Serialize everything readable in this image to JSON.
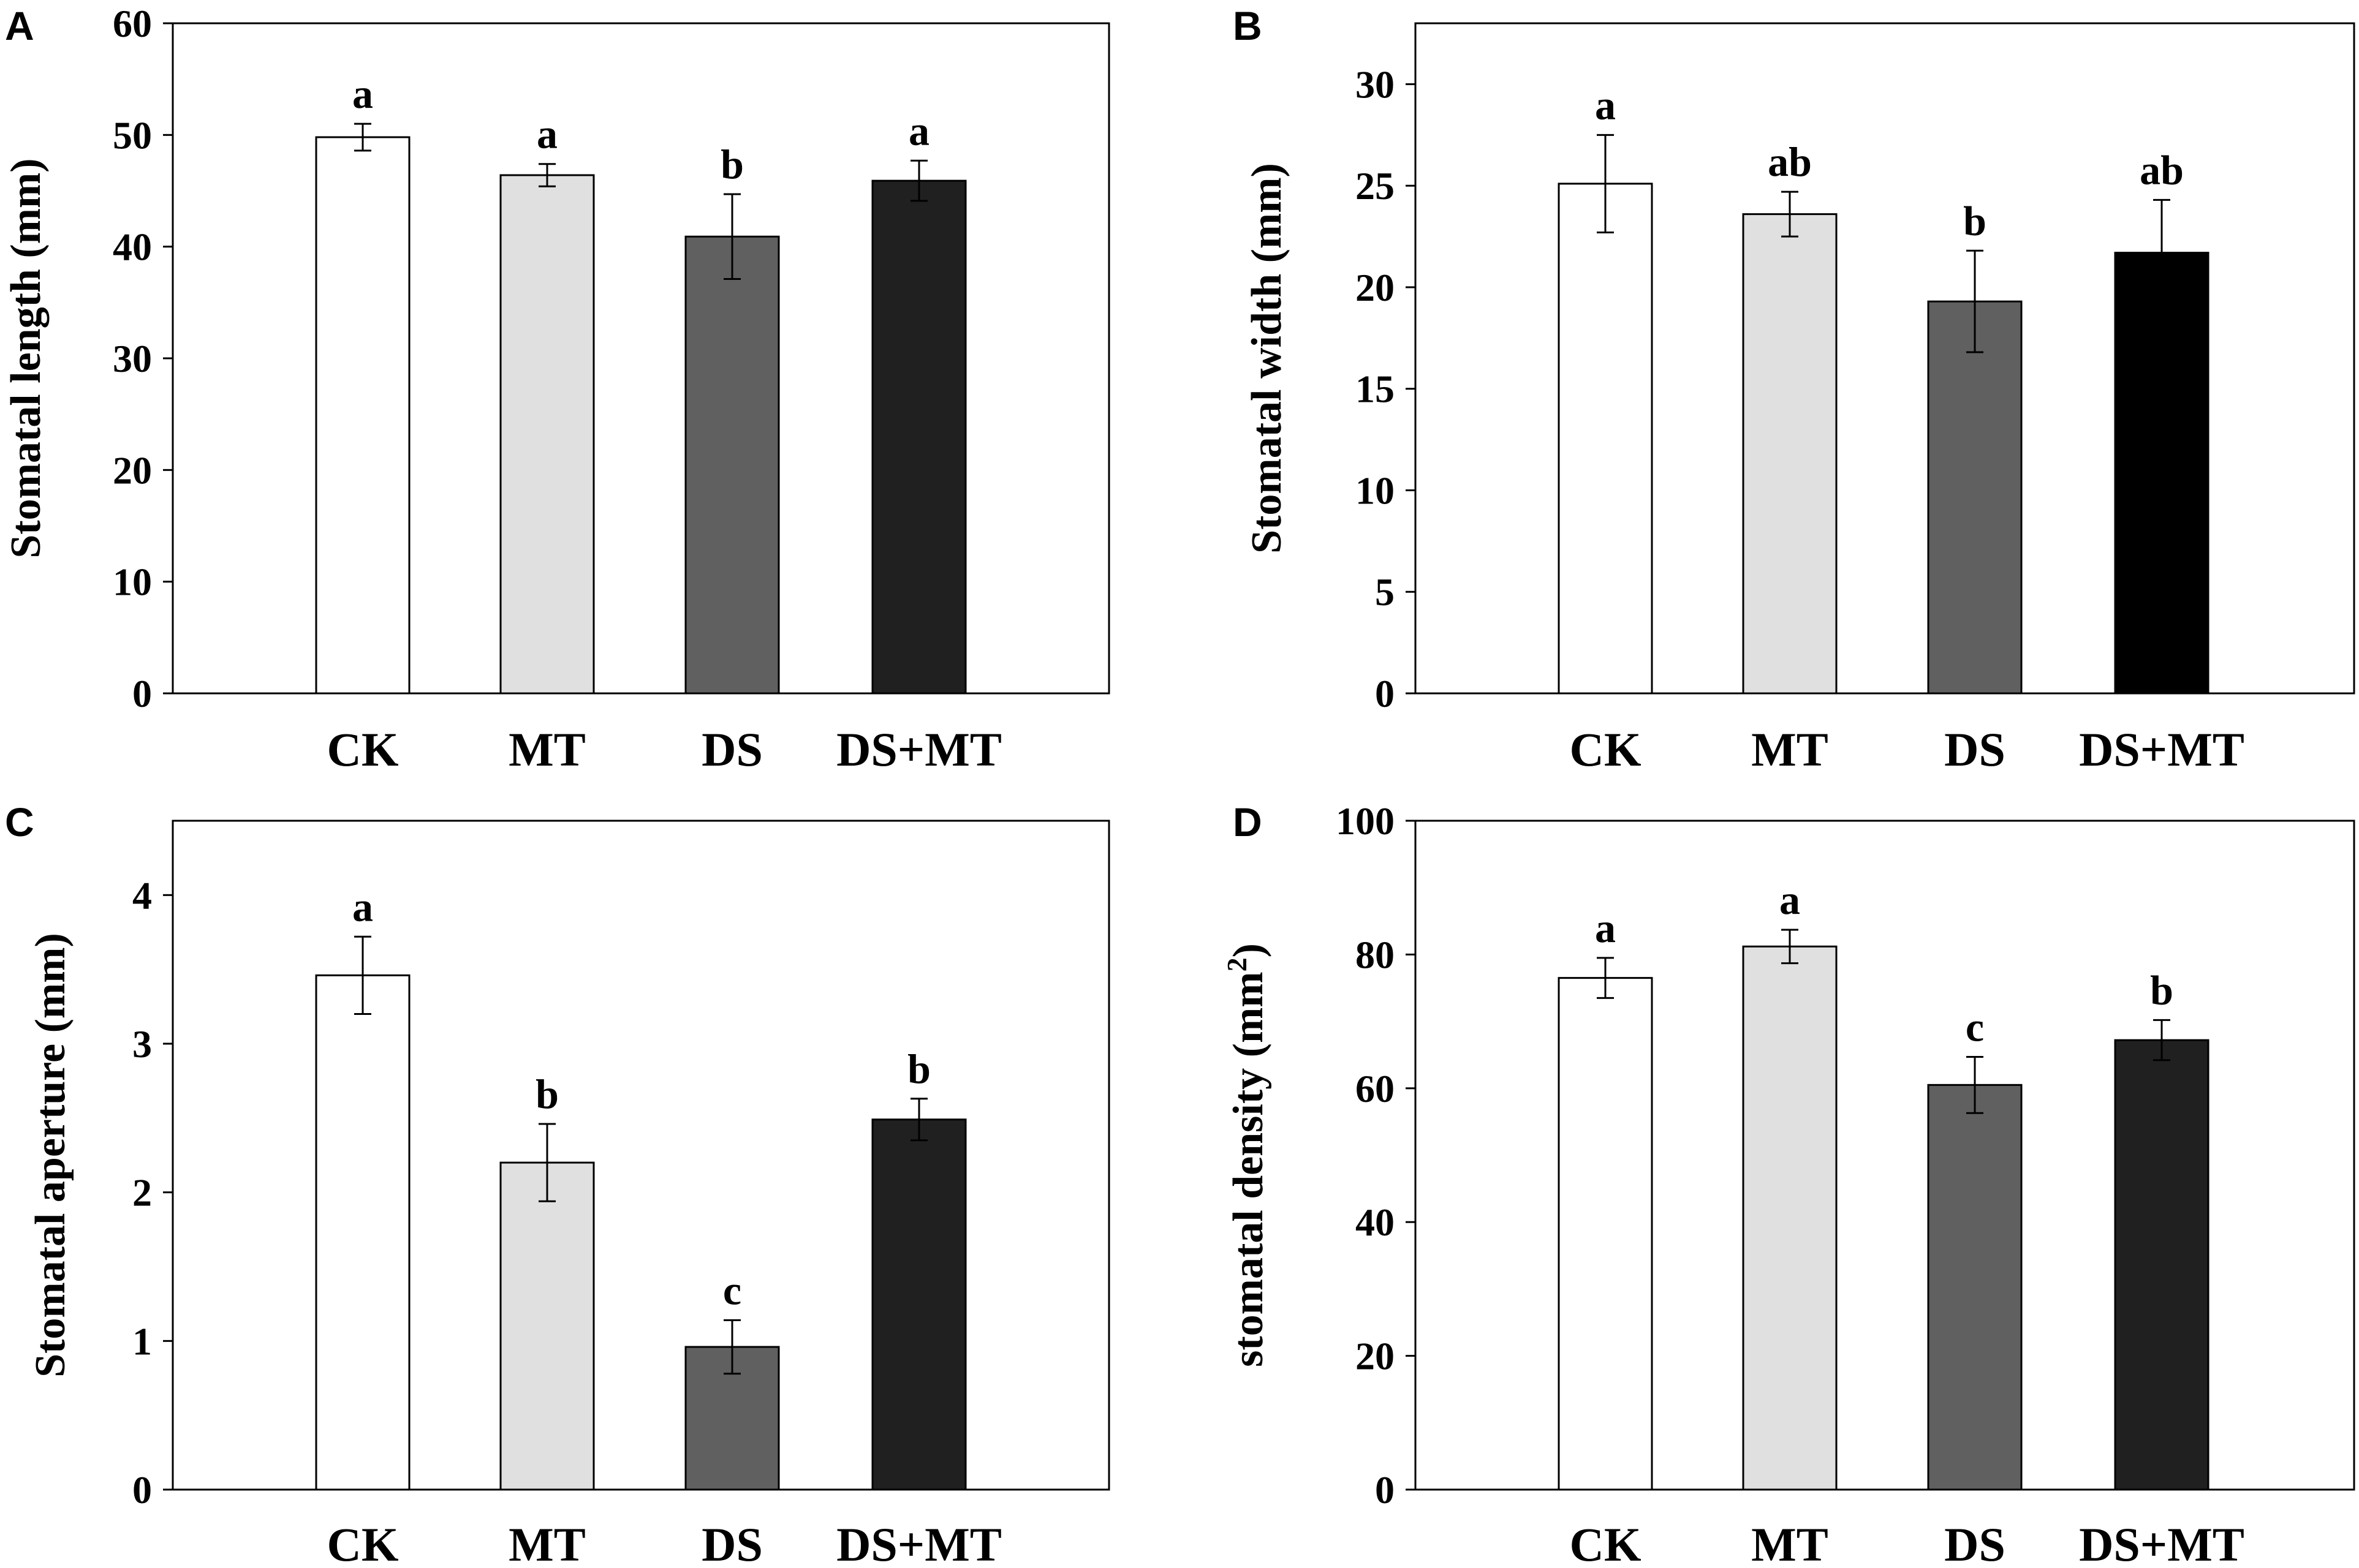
{
  "chart_data": [
    {
      "type": "bar",
      "panel": "A",
      "categories": [
        "CK",
        "MT",
        "DS",
        "DS+MT"
      ],
      "values": [
        49.8,
        46.4,
        40.9,
        45.9
      ],
      "errors": [
        1.2,
        1.0,
        3.8,
        1.8
      ],
      "significance": [
        "a",
        "a",
        "b",
        "a"
      ],
      "colors": [
        "#ffffff",
        "#e0e0e0",
        "#606060",
        "#202020"
      ],
      "ylabel": "Stomatal length (mm)",
      "ylabel_sup": "",
      "ylabel_tail": "",
      "ylim": [
        0,
        60
      ],
      "yticks": [
        0,
        10,
        20,
        30,
        40,
        50,
        60
      ]
    },
    {
      "type": "bar",
      "panel": "B",
      "categories": [
        "CK",
        "MT",
        "DS",
        "DS+MT"
      ],
      "values": [
        25.1,
        23.6,
        19.3,
        21.7
      ],
      "errors": [
        2.4,
        1.1,
        2.5,
        2.6
      ],
      "significance": [
        "a",
        "ab",
        "b",
        "ab"
      ],
      "colors": [
        "#ffffff",
        "#e0e0e0",
        "#606060",
        "#000000"
      ],
      "ylabel": "Stomatal width (mm)",
      "ylabel_sup": "",
      "ylabel_tail": "",
      "ylim": [
        0,
        33
      ],
      "yticks": [
        0,
        5,
        10,
        15,
        20,
        25,
        30
      ]
    },
    {
      "type": "bar",
      "panel": "C",
      "categories": [
        "CK",
        "MT",
        "DS",
        "DS+MT"
      ],
      "values": [
        3.46,
        2.2,
        0.96,
        2.49
      ],
      "errors": [
        0.26,
        0.26,
        0.18,
        0.14
      ],
      "significance": [
        "a",
        "b",
        "c",
        "b"
      ],
      "colors": [
        "#ffffff",
        "#e0e0e0",
        "#606060",
        "#202020"
      ],
      "ylabel": "Stomatal aperture (mm)",
      "ylabel_sup": "",
      "ylabel_tail": "",
      "ylim": [
        0,
        4.5
      ],
      "yticks": [
        0,
        1,
        2,
        3,
        4
      ]
    },
    {
      "type": "bar",
      "panel": "D",
      "categories": [
        "CK",
        "MT",
        "DS",
        "DS+MT"
      ],
      "values": [
        76.5,
        81.2,
        60.5,
        67.2
      ],
      "errors": [
        3.0,
        2.5,
        4.2,
        3.0
      ],
      "significance": [
        "a",
        "a",
        "c",
        "b"
      ],
      "colors": [
        "#ffffff",
        "#e0e0e0",
        "#606060",
        "#202020"
      ],
      "ylabel": "stomatal density (mm",
      "ylabel_sup": "2",
      "ylabel_tail": ")",
      "ylim": [
        0,
        100
      ],
      "yticks": [
        0,
        20,
        40,
        60,
        80,
        100
      ]
    }
  ]
}
